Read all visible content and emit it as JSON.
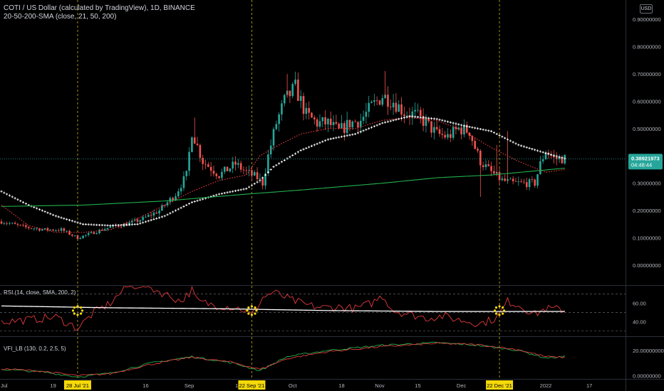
{
  "header": {
    "symbol_line": "COTI / US Dollar (calculated by TradingView), 1D, BINANCE",
    "indicator_line": "20-50-200-SMA (close, 21, 50, 200)",
    "currency_badge": "USD"
  },
  "price_label": {
    "price": "0.38921973",
    "countdown": "04:48:44"
  },
  "chart_data": [
    {
      "type": "candlestick",
      "title": "COTI / US Dollar (calculated by TradingView), 1D, BINANCE",
      "y_ticks": [
        "0.90000000",
        "0.80000000",
        "0.70000000",
        "0.60000000",
        "0.50000000",
        "0.40000000",
        "0.30000000",
        "0.20000000",
        "0.10000000",
        "0.00000000"
      ],
      "ylim": [
        -0.07,
        0.97
      ],
      "last_price": 0.38921973,
      "overlays": [
        {
          "name": "SMA 21",
          "color": "#e03a3e",
          "style": "dotted",
          "anchors": [
            [
              0,
              0.22
            ],
            [
              10,
              0.145
            ],
            [
              20,
              0.12
            ],
            [
              30,
              0.12
            ],
            [
              40,
              0.13
            ],
            [
              50,
              0.17
            ],
            [
              60,
              0.22
            ],
            [
              70,
              0.27
            ],
            [
              80,
              0.31
            ],
            [
              90,
              0.33
            ],
            [
              95,
              0.4
            ],
            [
              100,
              0.43
            ],
            [
              110,
              0.48
            ],
            [
              120,
              0.5
            ],
            [
              130,
              0.5
            ],
            [
              140,
              0.53
            ],
            [
              150,
              0.54
            ],
            [
              160,
              0.53
            ],
            [
              170,
              0.49
            ],
            [
              180,
              0.43
            ],
            [
              190,
              0.38
            ],
            [
              200,
              0.34
            ],
            [
              207,
              0.35
            ]
          ]
        },
        {
          "name": "SMA 50",
          "color": "#ffffff",
          "style": "crosses",
          "anchors": [
            [
              0,
              0.27
            ],
            [
              10,
              0.22
            ],
            [
              20,
              0.18
            ],
            [
              30,
              0.15
            ],
            [
              40,
              0.145
            ],
            [
              50,
              0.15
            ],
            [
              60,
              0.18
            ],
            [
              70,
              0.23
            ],
            [
              80,
              0.26
            ],
            [
              90,
              0.28
            ],
            [
              95,
              0.31
            ],
            [
              100,
              0.36
            ],
            [
              110,
              0.42
            ],
            [
              120,
              0.46
            ],
            [
              130,
              0.48
            ],
            [
              140,
              0.52
            ],
            [
              150,
              0.545
            ],
            [
              160,
              0.535
            ],
            [
              170,
              0.51
            ],
            [
              180,
              0.49
            ],
            [
              190,
              0.44
            ],
            [
              200,
              0.41
            ],
            [
              207,
              0.39
            ]
          ]
        },
        {
          "name": "SMA 200",
          "color": "#22b14c",
          "style": "line",
          "anchors": [
            [
              0,
              0.215
            ],
            [
              30,
              0.22
            ],
            [
              60,
              0.235
            ],
            [
              90,
              0.26
            ],
            [
              110,
              0.275
            ],
            [
              140,
              0.3
            ],
            [
              160,
              0.32
            ],
            [
              180,
              0.33
            ],
            [
              207,
              0.355
            ]
          ]
        }
      ],
      "candle_anchors": [
        [
          0,
          0.16
        ],
        [
          8,
          0.14
        ],
        [
          16,
          0.13
        ],
        [
          22,
          0.13
        ],
        [
          28,
          0.1
        ],
        [
          34,
          0.12
        ],
        [
          40,
          0.14
        ],
        [
          46,
          0.15
        ],
        [
          52,
          0.17
        ],
        [
          58,
          0.2
        ],
        [
          64,
          0.26
        ],
        [
          68,
          0.33
        ],
        [
          70,
          0.49
        ],
        [
          74,
          0.38
        ],
        [
          80,
          0.33
        ],
        [
          86,
          0.37
        ],
        [
          90,
          0.34
        ],
        [
          94,
          0.32
        ],
        [
          96,
          0.3
        ],
        [
          98,
          0.4
        ],
        [
          101,
          0.52
        ],
        [
          104,
          0.6
        ],
        [
          108,
          0.65
        ],
        [
          112,
          0.55
        ],
        [
          116,
          0.52
        ],
        [
          120,
          0.52
        ],
        [
          124,
          0.49
        ],
        [
          128,
          0.52
        ],
        [
          132,
          0.53
        ],
        [
          136,
          0.58
        ],
        [
          140,
          0.62
        ],
        [
          144,
          0.6
        ],
        [
          148,
          0.56
        ],
        [
          152,
          0.55
        ],
        [
          156,
          0.52
        ],
        [
          160,
          0.48
        ],
        [
          164,
          0.47
        ],
        [
          168,
          0.5
        ],
        [
          172,
          0.49
        ],
        [
          174,
          0.43
        ],
        [
          176,
          0.38
        ],
        [
          180,
          0.34
        ],
        [
          184,
          0.31
        ],
        [
          188,
          0.3
        ],
        [
          192,
          0.3
        ],
        [
          196,
          0.3
        ],
        [
          198,
          0.37
        ],
        [
          200,
          0.42
        ],
        [
          203,
          0.39
        ],
        [
          207,
          0.39
        ]
      ],
      "x_ticks": [
        {
          "label": "Jul",
          "idx": 1
        },
        {
          "label": "19",
          "idx": 19
        },
        {
          "label": "16",
          "idx": 53
        },
        {
          "label": "Sep",
          "idx": 69
        },
        {
          "label": "13",
          "idx": 87
        },
        {
          "label": "Oct",
          "idx": 107
        },
        {
          "label": "18",
          "idx": 125
        },
        {
          "label": "Nov",
          "idx": 139
        },
        {
          "label": "15",
          "idx": 153
        },
        {
          "label": "Dec",
          "idx": 169
        },
        {
          "label": "13",
          "idx": 181
        },
        {
          "label": "2022",
          "idx": 200
        },
        {
          "label": "17",
          "idx": 216
        }
      ],
      "highlighted_dates": [
        {
          "label": "28 Jul '21",
          "idx": 28
        },
        {
          "label": "22 Sep '21",
          "idx": 92
        },
        {
          "label": "22 Dec '21",
          "idx": 183
        }
      ]
    },
    {
      "type": "line",
      "title": "RSI (14, close, SMA, 200, 2)",
      "y_ticks": [
        "60.00",
        "40.00"
      ],
      "ylim": [
        25,
        78
      ],
      "bands": [
        70,
        50,
        30
      ],
      "series": [
        {
          "name": "RSI",
          "color": "#e03a3e",
          "anchors": [
            [
              0,
              40
            ],
            [
              10,
              42
            ],
            [
              20,
              45
            ],
            [
              28,
              33
            ],
            [
              34,
              50
            ],
            [
              40,
              60
            ],
            [
              46,
              78
            ],
            [
              52,
              80
            ],
            [
              60,
              70
            ],
            [
              66,
              62
            ],
            [
              70,
              74
            ],
            [
              72,
              62
            ],
            [
              78,
              58
            ],
            [
              84,
              56
            ],
            [
              88,
              54
            ],
            [
              92,
              47
            ],
            [
              96,
              66
            ],
            [
              100,
              72
            ],
            [
              106,
              64
            ],
            [
              112,
              58
            ],
            [
              118,
              55
            ],
            [
              124,
              56
            ],
            [
              130,
              54
            ],
            [
              136,
              60
            ],
            [
              140,
              68
            ],
            [
              144,
              52
            ],
            [
              150,
              48
            ],
            [
              156,
              44
            ],
            [
              162,
              46
            ],
            [
              168,
              42
            ],
            [
              172,
              40
            ],
            [
              176,
              38
            ],
            [
              182,
              44
            ],
            [
              186,
              62
            ],
            [
              190,
              58
            ],
            [
              196,
              48
            ],
            [
              200,
              54
            ],
            [
              207,
              53
            ]
          ]
        },
        {
          "name": "RSI SMA",
          "color": "#ffffff",
          "anchors": [
            [
              0,
              57
            ],
            [
              40,
              55
            ],
            [
              80,
              54
            ],
            [
              120,
              52
            ],
            [
              160,
              51
            ],
            [
              207,
              51
            ]
          ]
        }
      ],
      "markers_at": [
        28,
        92,
        183
      ]
    },
    {
      "type": "line",
      "title": "VFI_LB (130, 0.2, 2.5, 5)",
      "y_ticks": [
        "20.00000000",
        "0.00000000"
      ],
      "ylim": [
        -2,
        30
      ],
      "series": [
        {
          "name": "VFI",
          "color": "#22b14c",
          "anchors": [
            [
              0,
              5
            ],
            [
              15,
              3
            ],
            [
              28,
              -1
            ],
            [
              40,
              2
            ],
            [
              55,
              10
            ],
            [
              70,
              15
            ],
            [
              85,
              10
            ],
            [
              95,
              4
            ],
            [
              105,
              15
            ],
            [
              120,
              20
            ],
            [
              140,
              24
            ],
            [
              160,
              26
            ],
            [
              175,
              24
            ],
            [
              190,
              20
            ],
            [
              200,
              14
            ],
            [
              207,
              15
            ]
          ]
        },
        {
          "name": "VFI signal",
          "color": "#e03a3e",
          "anchors": [
            [
              0,
              5.5
            ],
            [
              15,
              3.5
            ],
            [
              28,
              0
            ],
            [
              40,
              1.5
            ],
            [
              55,
              9
            ],
            [
              70,
              14.5
            ],
            [
              85,
              10.5
            ],
            [
              95,
              5
            ],
            [
              105,
              13.5
            ],
            [
              120,
              19
            ],
            [
              140,
              23
            ],
            [
              160,
              25.5
            ],
            [
              175,
              24.5
            ],
            [
              190,
              20.5
            ],
            [
              200,
              15
            ],
            [
              207,
              14.5
            ]
          ]
        }
      ]
    }
  ]
}
